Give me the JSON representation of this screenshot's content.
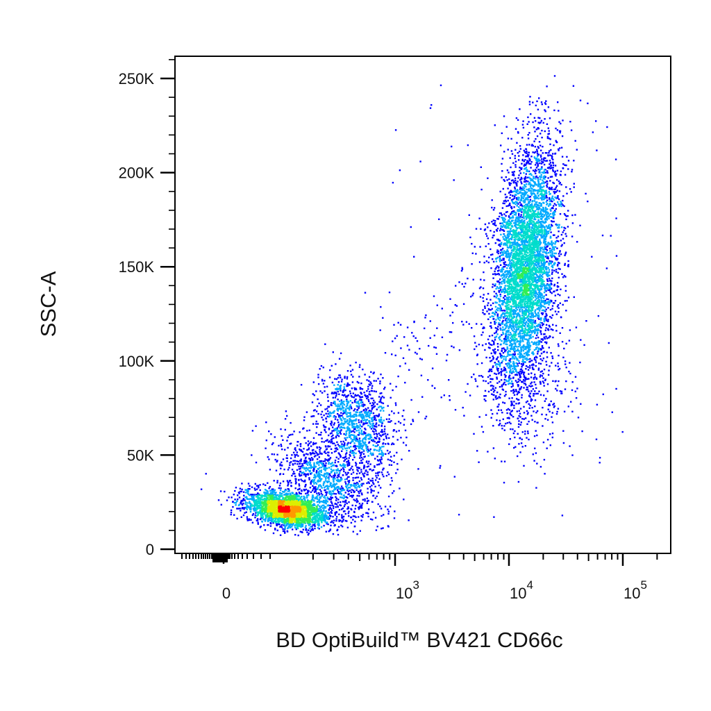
{
  "chart_data": {
    "type": "scatter",
    "style": "flow-cytometry-density-dot-plot",
    "xlabel": "BD OptiBuild™ BV421 CD66c",
    "ylabel": "SSC-A",
    "x_scale": "biexponential",
    "y_scale": "linear",
    "xlim": [
      -300,
      200000
    ],
    "ylim": [
      0,
      262144
    ],
    "x_ticks": [
      {
        "value": 0,
        "base": "0",
        "exp": ""
      },
      {
        "value": 1000,
        "base": "10",
        "exp": "3"
      },
      {
        "value": 10000,
        "base": "10",
        "exp": "4"
      },
      {
        "value": 100000,
        "base": "10",
        "exp": "5"
      }
    ],
    "y_ticks": [
      {
        "value": 0,
        "label": "0"
      },
      {
        "value": 50000,
        "label": "50K"
      },
      {
        "value": 100000,
        "label": "100K"
      },
      {
        "value": 150000,
        "label": "150K"
      },
      {
        "value": 200000,
        "label": "200K"
      },
      {
        "value": 250000,
        "label": "250K"
      }
    ],
    "density_colors": [
      "#0000ff",
      "#00aaff",
      "#00ddcc",
      "#33ee55",
      "#ddee00",
      "#ff9900",
      "#ff0000"
    ],
    "grid": false,
    "populations": [
      {
        "center_x": 120,
        "center_y": 21000,
        "approx_fraction": 0.3,
        "peak_density": "high"
      },
      {
        "center_x": 550,
        "center_y": 68000,
        "approx_fraction": 0.13,
        "peak_density": "medium"
      },
      {
        "center_x": 12500,
        "center_y": 150000,
        "approx_fraction": 0.55,
        "peak_density": "high"
      }
    ]
  }
}
